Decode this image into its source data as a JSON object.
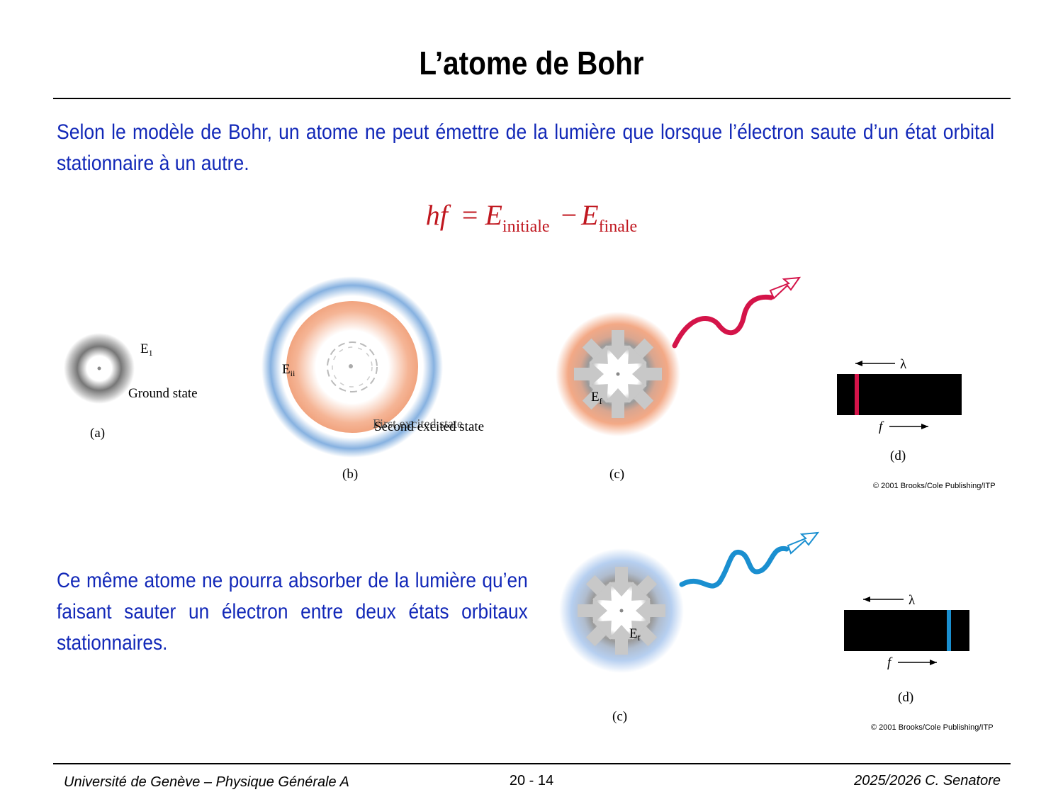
{
  "slide": {
    "title": "L’atome de Bohr",
    "para1": "Selon le modèle de Bohr, un atome ne peut émettre de la lumière que lorsque l’électron saute d’un état orbital stationnaire à un autre.",
    "para2": "Ce même atome ne pourra absorber de la lumière qu’en faisant sauter un électron entre deux états orbitaux stationnaires."
  },
  "formula": {
    "lhs": "hf",
    "eq": "=",
    "e1": "E",
    "sub1": "initiale",
    "minus": "−",
    "e2": "E",
    "sub2": "finale"
  },
  "figure_top": {
    "a_energy": "E",
    "a_energy_sub": "1",
    "a_state": "Ground state",
    "a_caption": "(a)",
    "b_energy": "E",
    "b_energy_sub": "ii",
    "b_label_overlap": "First excited state",
    "b_state": "Second excited state",
    "b_caption": "(b)",
    "c_energy": "E",
    "c_energy_sub": "f",
    "c_caption": "(c)",
    "d_lambda": "λ",
    "d_freq": "f",
    "d_caption": "(d)",
    "copyright": "© 2001 Brooks/Cole Publishing/ITP"
  },
  "figure_bottom": {
    "c_energy": "E",
    "c_energy_sub": "f",
    "c_caption": "(c)",
    "d_lambda": "λ",
    "d_freq": "f",
    "d_caption": "(d)",
    "copyright": "© 2001 Brooks/Cole Publishing/ITP"
  },
  "footer": {
    "left": "Université de Genève – Physique Générale A",
    "center": "20 - 14",
    "right": "2025/2026  C. Senatore"
  },
  "colors": {
    "text_blue": "#1228b8",
    "formula_red": "#c0171f",
    "emission_line": "#d41449",
    "absorption_line": "#1a8fd0",
    "orange_cloud": "#f1a47f",
    "blue_cloud": "#8cb4e0"
  }
}
